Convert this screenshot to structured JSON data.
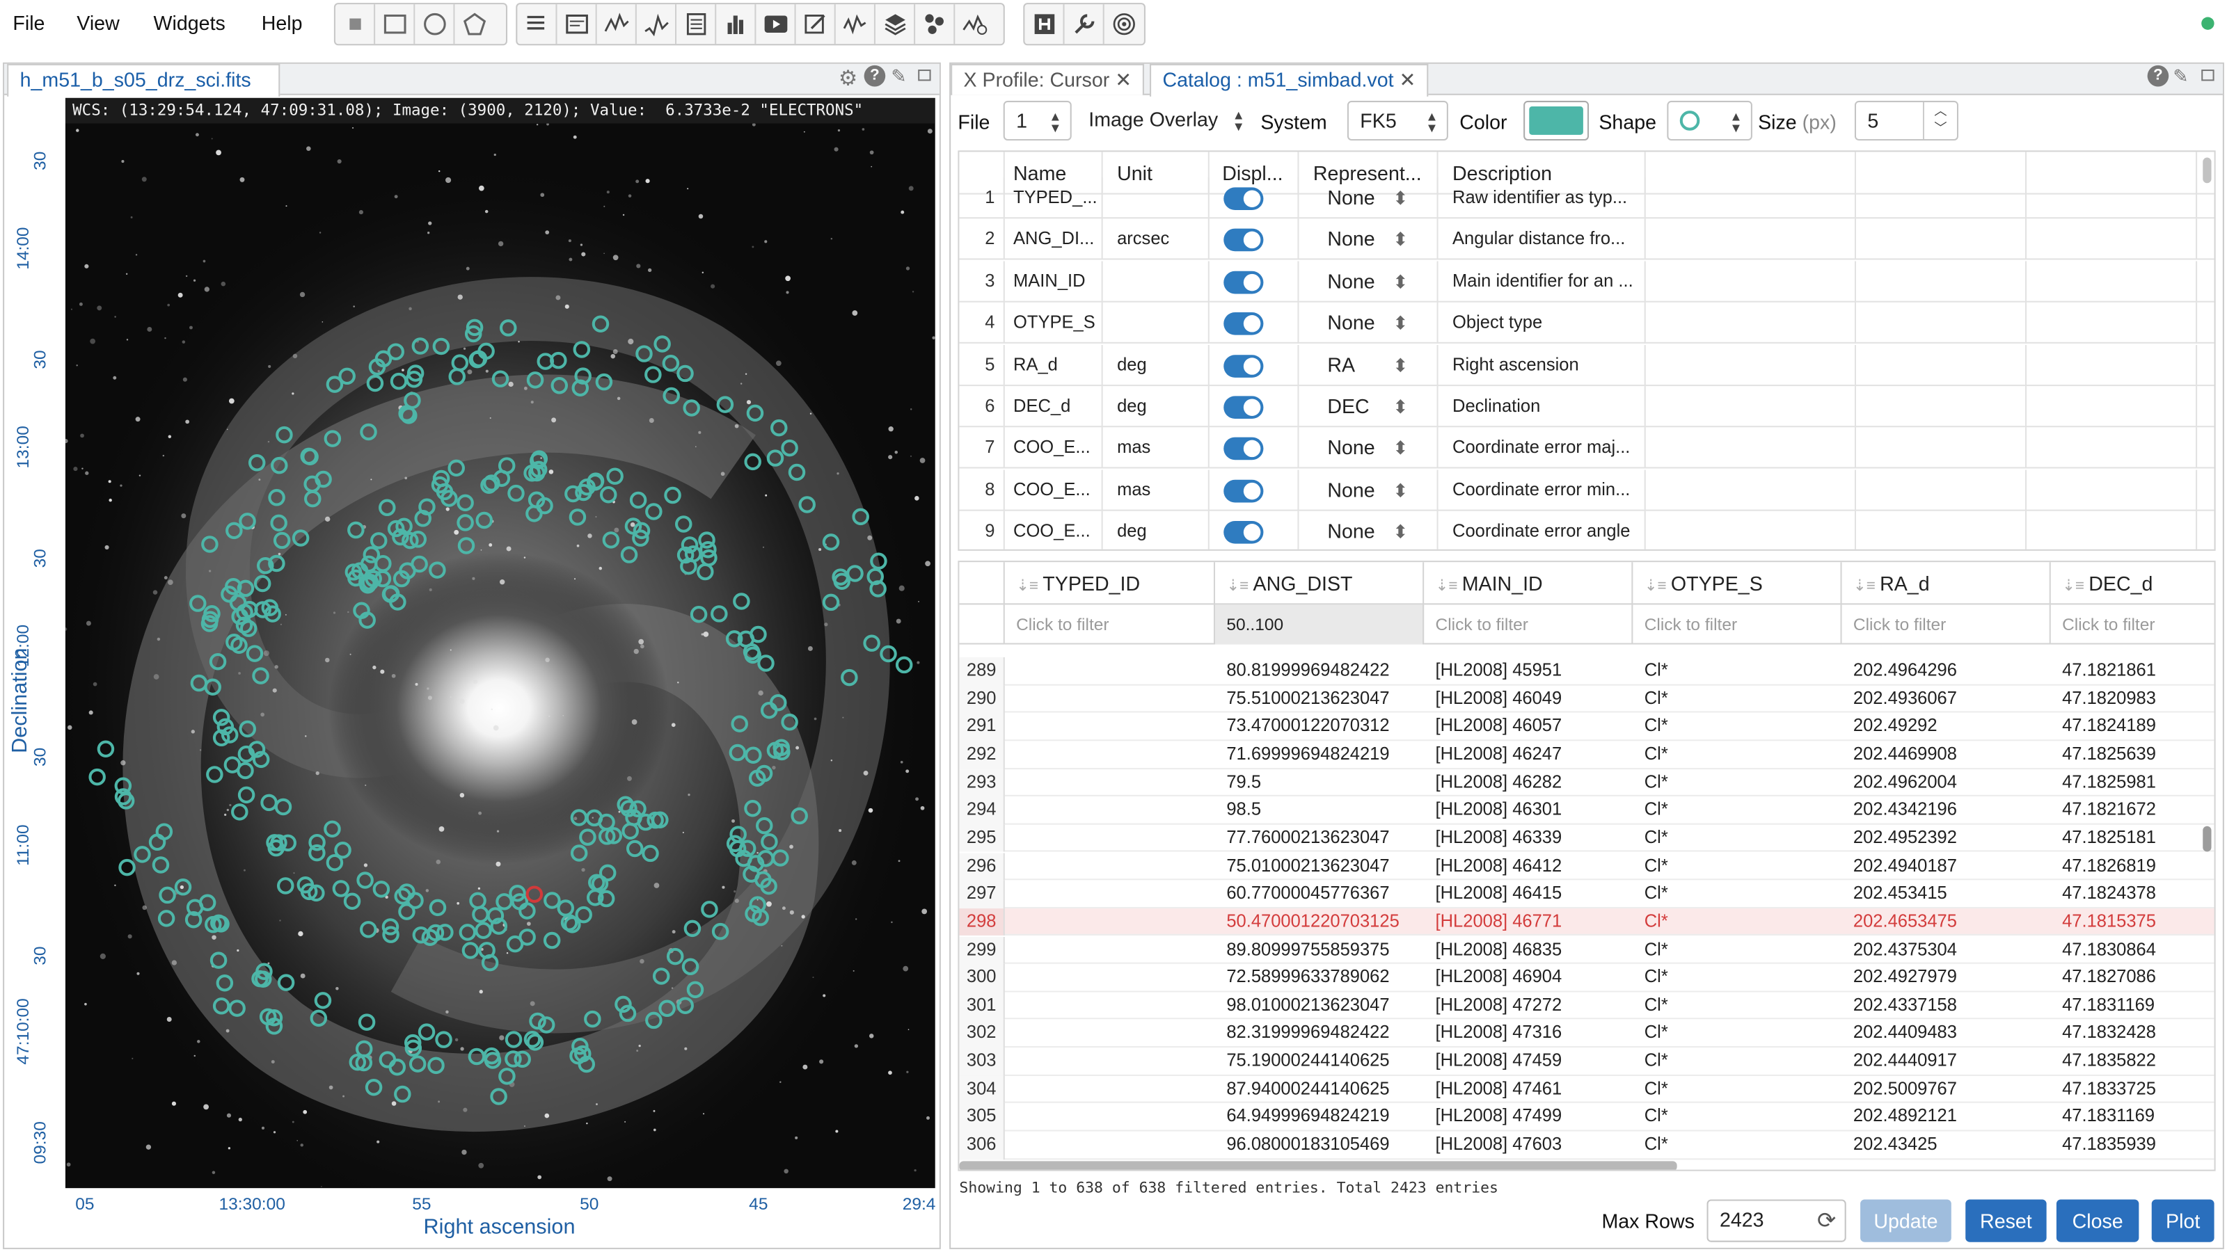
{
  "menubar": {
    "items": [
      "File",
      "View",
      "Widgets",
      "Help"
    ]
  },
  "image_panel": {
    "tab": "h_m51_b_s05_drz_sci.fits",
    "wcs_info": "WCS: (13:29:54.124, 47:09:31.08); Image: (3900, 2120); Value:  6.3733e-2 \"ELECTRONS\"",
    "y_axis_label": "Declination",
    "x_axis_label": "Right ascension",
    "y_ticks": [
      "30",
      "14:00",
      "30",
      "13:00",
      "30",
      "12:00",
      "30",
      "11:00",
      "30",
      "47:10:00",
      "09:30"
    ],
    "x_ticks": [
      "05",
      "13:30:00",
      "55",
      "50",
      "45",
      "29:4"
    ]
  },
  "catalog_panel": {
    "tabs": [
      "X Profile: Cursor",
      "Catalog : m51_simbad.vot"
    ],
    "controls": {
      "file_label": "File",
      "file_value": "1",
      "overlay_value": "Image Overlay",
      "system_label": "System",
      "system_value": "FK5",
      "color_label": "Color",
      "color_value": "#4db6a8",
      "shape_label": "Shape",
      "size_label": "Size",
      "size_unit": "(px)",
      "size_value": "5"
    },
    "column_table": {
      "headers": [
        "Name",
        "Unit",
        "Displ...",
        "Represent...",
        "Description"
      ],
      "rows": [
        {
          "n": "1",
          "name": "TYPED_...",
          "unit": "",
          "rep": "None",
          "desc": "Raw identifier as typ..."
        },
        {
          "n": "2",
          "name": "ANG_DI...",
          "unit": "arcsec",
          "rep": "None",
          "desc": "Angular distance fro..."
        },
        {
          "n": "3",
          "name": "MAIN_ID",
          "unit": "",
          "rep": "None",
          "desc": "Main identifier for an ..."
        },
        {
          "n": "4",
          "name": "OTYPE_S",
          "unit": "",
          "rep": "None",
          "desc": "Object type"
        },
        {
          "n": "5",
          "name": "RA_d",
          "unit": "deg",
          "rep": "RA",
          "desc": "Right ascension"
        },
        {
          "n": "6",
          "name": "DEC_d",
          "unit": "deg",
          "rep": "DEC",
          "desc": "Declination"
        },
        {
          "n": "7",
          "name": "COO_E...",
          "unit": "mas",
          "rep": "None",
          "desc": "Coordinate error maj..."
        },
        {
          "n": "8",
          "name": "COO_E...",
          "unit": "mas",
          "rep": "None",
          "desc": "Coordinate error min..."
        },
        {
          "n": "9",
          "name": "COO_E...",
          "unit": "deg",
          "rep": "None",
          "desc": "Coordinate error angle"
        }
      ]
    },
    "data_table": {
      "headers": [
        "TYPED_ID",
        "ANG_DIST",
        "MAIN_ID",
        "OTYPE_S",
        "RA_d",
        "DEC_d"
      ],
      "filters": [
        "Click to filter",
        "50..100",
        "Click to filter",
        "Click to filter",
        "Click to filter",
        "Click to filter"
      ],
      "rows": [
        [
          "289",
          "",
          "80.81999969482422",
          "[HL2008] 45951",
          "Cl*",
          "202.4964296",
          "47.1821861"
        ],
        [
          "290",
          "",
          "75.51000213623047",
          "[HL2008] 46049",
          "Cl*",
          "202.4936067",
          "47.1820983"
        ],
        [
          "291",
          "",
          "73.47000122070312",
          "[HL2008] 46057",
          "Cl*",
          "202.49292",
          "47.1824189"
        ],
        [
          "292",
          "",
          "71.69999694824219",
          "[HL2008] 46247",
          "Cl*",
          "202.4469908",
          "47.1825639"
        ],
        [
          "293",
          "",
          "79.5",
          "[HL2008] 46282",
          "Cl*",
          "202.4962004",
          "47.1825981"
        ],
        [
          "294",
          "",
          "98.5",
          "[HL2008] 46301",
          "Cl*",
          "202.4342196",
          "47.1821672"
        ],
        [
          "295",
          "",
          "77.76000213623047",
          "[HL2008] 46339",
          "Cl*",
          "202.4952392",
          "47.1825181"
        ],
        [
          "296",
          "",
          "75.01000213623047",
          "[HL2008] 46412",
          "Cl*",
          "202.4940187",
          "47.1826819"
        ],
        [
          "297",
          "",
          "60.77000045776367",
          "[HL2008] 46415",
          "Cl*",
          "202.453415",
          "47.1824378"
        ],
        [
          "298",
          "",
          "50.470001220703125",
          "[HL2008] 46771",
          "Cl*",
          "202.4653475",
          "47.1815375"
        ],
        [
          "299",
          "",
          "89.80999755859375",
          "[HL2008] 46835",
          "Cl*",
          "202.4375304",
          "47.1830864"
        ],
        [
          "300",
          "",
          "72.58999633789062",
          "[HL2008] 46904",
          "Cl*",
          "202.4927979",
          "47.1827086"
        ],
        [
          "301",
          "",
          "98.01000213623047",
          "[HL2008] 47272",
          "Cl*",
          "202.4337158",
          "47.1831169"
        ],
        [
          "302",
          "",
          "82.31999969482422",
          "[HL2008] 47316",
          "Cl*",
          "202.4409483",
          "47.1832428"
        ],
        [
          "303",
          "",
          "75.19000244140625",
          "[HL2008] 47459",
          "Cl*",
          "202.4440917",
          "47.1835822"
        ],
        [
          "304",
          "",
          "87.94000244140625",
          "[HL2008] 47461",
          "Cl*",
          "202.5009767",
          "47.1833725"
        ],
        [
          "305",
          "",
          "64.94999694824219",
          "[HL2008] 47499",
          "Cl*",
          "202.4892121",
          "47.1831169"
        ],
        [
          "306",
          "",
          "96.08000183105469",
          "[HL2008] 47603",
          "Cl*",
          "202.43425",
          "47.1835939"
        ]
      ],
      "selected_row": "298"
    },
    "status": "Showing 1 to 638 of 638 filtered entries. Total 2423 entries",
    "max_rows_label": "Max Rows",
    "max_rows_value": "2423",
    "buttons": {
      "update": "Update",
      "reset": "Reset",
      "close": "Close",
      "plot": "Plot"
    }
  }
}
